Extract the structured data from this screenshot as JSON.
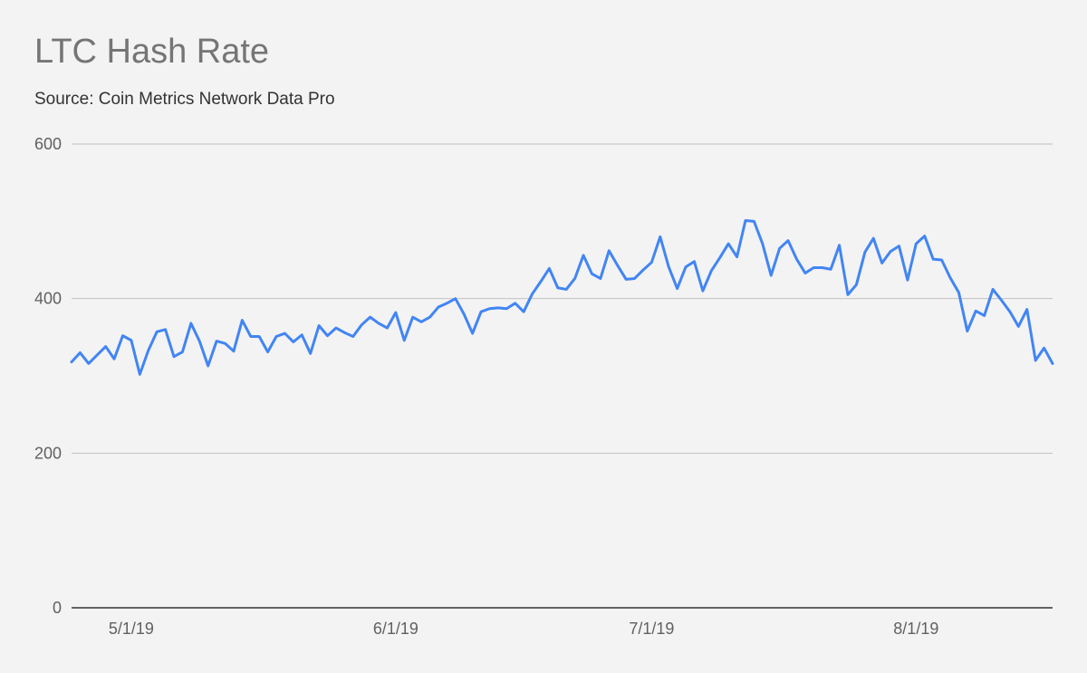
{
  "chart_data": {
    "type": "line",
    "title": "LTC Hash Rate",
    "subtitle": "Source: Coin Metrics Network Data Pro",
    "xlabel": "",
    "ylabel": "",
    "ylim": [
      0,
      600
    ],
    "yticks": [
      0,
      200,
      400,
      600
    ],
    "xticks": [
      {
        "label": "5/1/19",
        "index": 7
      },
      {
        "label": "6/1/19",
        "index": 38
      },
      {
        "label": "7/1/19",
        "index": 68
      },
      {
        "label": "8/1/19",
        "index": 99
      }
    ],
    "x_start": "4/24/19",
    "x_end": "8/18/19",
    "grid": true,
    "legend": "none",
    "series": [
      {
        "name": "LTC Hash Rate",
        "color": "#4285f4",
        "values": [
          318,
          330,
          316,
          327,
          338,
          322,
          352,
          346,
          302,
          333,
          357,
          360,
          325,
          331,
          368,
          345,
          313,
          345,
          342,
          332,
          372,
          351,
          351,
          331,
          351,
          355,
          344,
          353,
          329,
          365,
          352,
          362,
          356,
          351,
          366,
          376,
          368,
          362,
          382,
          346,
          376,
          370,
          376,
          389,
          394,
          400,
          380,
          355,
          383,
          387,
          388,
          387,
          394,
          383,
          406,
          422,
          439,
          414,
          412,
          426,
          456,
          432,
          426,
          462,
          443,
          425,
          426,
          437,
          447,
          480,
          441,
          413,
          441,
          448,
          410,
          436,
          453,
          471,
          454,
          501,
          500,
          471,
          430,
          465,
          475,
          451,
          433,
          440,
          440,
          438,
          469,
          405,
          418,
          460,
          478,
          446,
          461,
          468,
          424,
          471,
          481,
          451,
          450,
          427,
          408,
          358,
          384,
          378,
          412,
          398,
          383,
          364,
          386,
          320,
          336,
          316
        ]
      }
    ]
  }
}
